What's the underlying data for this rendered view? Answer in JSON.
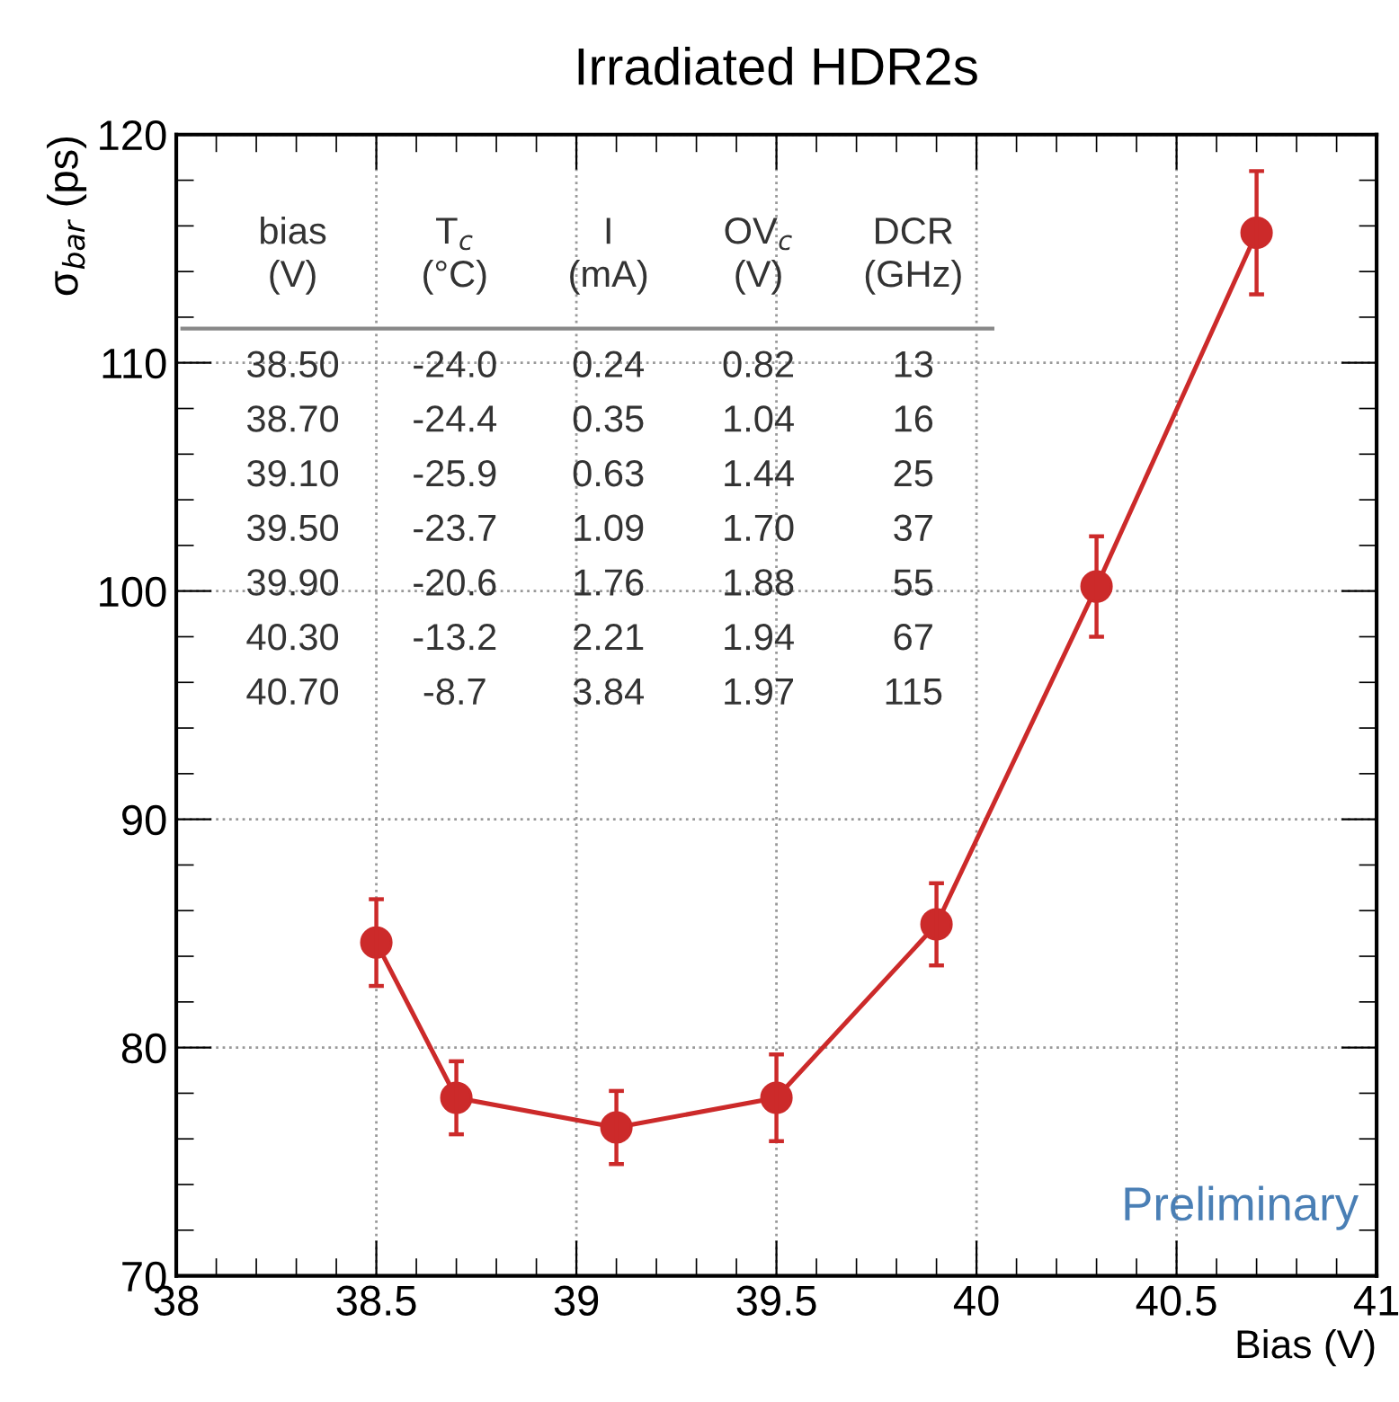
{
  "chart_data": {
    "type": "line",
    "title": "Irradiated HDR2s",
    "xlabel": "Bias (V)",
    "ylabel": "σ$_{bar}$ (ps)",
    "x": [
      38.5,
      38.7,
      39.1,
      39.5,
      39.9,
      40.3,
      40.7
    ],
    "series": [
      {
        "color": "#cc2a2a",
        "values": [
          84.6,
          77.8,
          76.5,
          77.8,
          85.4,
          100.2,
          115.7
        ],
        "errors": [
          1.9,
          1.6,
          1.6,
          1.9,
          1.8,
          2.2,
          2.7
        ]
      }
    ],
    "xlim": [
      38,
      41
    ],
    "xticks": [
      38,
      38.5,
      39,
      39.5,
      40,
      40.5,
      41
    ],
    "ylim": [
      70,
      120
    ],
    "yticks": [
      70,
      80,
      90,
      100,
      110,
      120
    ],
    "grid": true,
    "marker": "circle",
    "line_style": "solid",
    "annotations": [
      "bias\n(V)",
      "T$_{c}$\n(°C)",
      "I\n(mA)",
      "OV$_{c}$\n(V)",
      "DCR\n(GHz)",
      "38.50",
      "-24.0",
      "0.24",
      "0.82",
      "13",
      "38.70",
      "-24.4",
      "0.35",
      "1.04",
      "16",
      "39.10",
      "-25.9",
      "0.63",
      "1.44",
      "25",
      "39.50",
      "-23.7",
      "1.09",
      "1.70",
      "37",
      "39.90",
      "-20.6",
      "1.76",
      "1.88",
      "55",
      "40.30",
      "-13.2",
      "2.21",
      "1.94",
      "67",
      "40.70",
      "-8.7",
      "3.84",
      "1.97",
      "115",
      "Preliminary"
    ]
  }
}
